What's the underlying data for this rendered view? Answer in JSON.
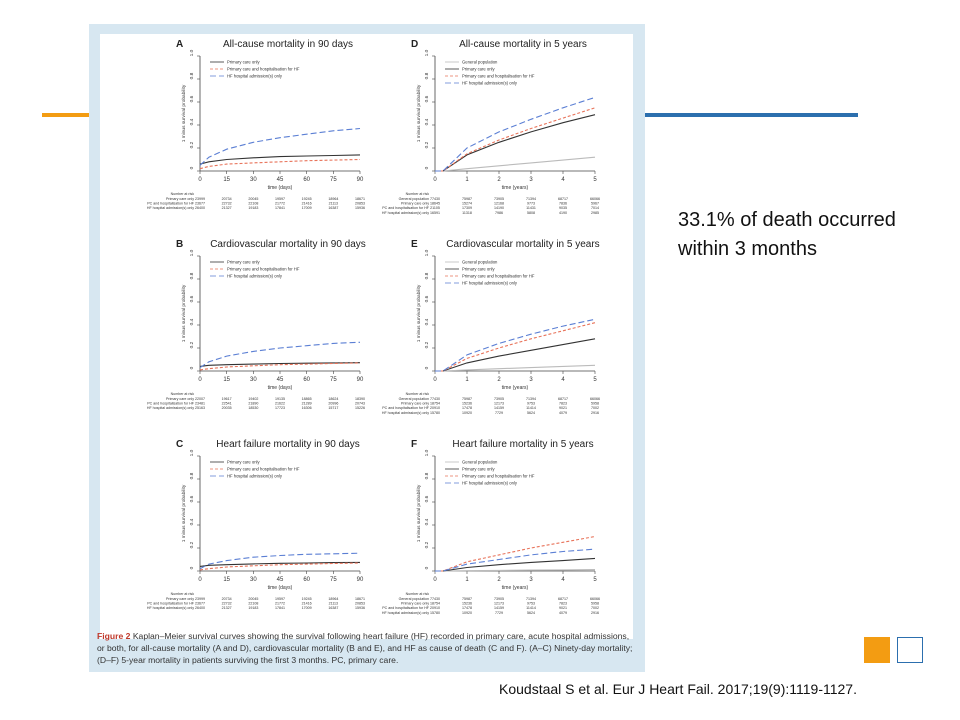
{
  "slide": {
    "note_line1": "33.1% of death occurred",
    "note_line2": "within 3 months",
    "citation": "Koudstaal S et al. Eur J Heart Fail. 2017;19(9):1119-1127.",
    "colors": {
      "orange": "#f39c12",
      "blue": "#2c6fae",
      "figure_bg": "#d7e7f1"
    }
  },
  "figure": {
    "caption_label": "Figure 2",
    "caption_text": "Kaplan–Meier survival curves showing the survival following heart failure (HF) recorded in primary care, acute hospital admissions, or both, for all-cause mortality (A and D), cardiovascular mortality (B and E), and HF as cause of death (C and F). (A–C) Ninety-day mortality; (D–F) 5-year mortality in patients surviving the first 3 months. PC, primary care."
  },
  "chart_data": [
    {
      "type": "line",
      "panel": "A",
      "title": "All-cause mortality in 90 days",
      "xlabel": "time (days)",
      "ylabel": "1 minus survival probability",
      "xlim": [
        0,
        90
      ],
      "ylim": [
        0,
        1
      ],
      "xticks": [
        "0",
        "15",
        "30",
        "45",
        "60",
        "75",
        "90"
      ],
      "yticks": [
        "0",
        "0.2",
        "0.4",
        "0.6",
        "0.8",
        "1.0"
      ],
      "x": [
        0,
        5,
        15,
        30,
        45,
        60,
        75,
        90
      ],
      "series": [
        {
          "name": "Primary care only",
          "color": "#333333",
          "dash": "",
          "values": [
            0.06,
            0.08,
            0.1,
            0.115,
            0.125,
            0.13,
            0.135,
            0.14
          ]
        },
        {
          "name": "Primary care and hospitalisation for HF",
          "color": "#e8735a",
          "dash": "3,2",
          "values": [
            0.02,
            0.04,
            0.06,
            0.07,
            0.08,
            0.09,
            0.095,
            0.1
          ]
        },
        {
          "name": "HF hospital admission(s) only",
          "color": "#5b7fd4",
          "dash": "6,3",
          "values": [
            0.05,
            0.12,
            0.19,
            0.25,
            0.29,
            0.32,
            0.35,
            0.37
          ]
        }
      ],
      "risk_header": "Number at risk",
      "risk_table": [
        {
          "label": "Primary care only",
          "values": [
            "23999",
            "20734",
            "20045",
            "19597",
            "19245",
            "18964",
            "18671"
          ]
        },
        {
          "label": "PC and hospitalisation for HF",
          "values": [
            "23677",
            "22732",
            "22108",
            "21772",
            "21416",
            "21113",
            "20853"
          ]
        },
        {
          "label": "HF hospital admission(s) only",
          "values": [
            "26400",
            "21327",
            "19183",
            "17841",
            "17009",
            "16387",
            "15936"
          ]
        }
      ]
    },
    {
      "type": "line",
      "panel": "B",
      "title": "Cardiovascular mortality in 90 days",
      "xlabel": "time (days)",
      "ylabel": "1 minus survival probability",
      "xlim": [
        0,
        90
      ],
      "ylim": [
        0,
        1
      ],
      "xticks": [
        "0",
        "15",
        "30",
        "45",
        "60",
        "75",
        "90"
      ],
      "yticks": [
        "0",
        "0.2",
        "0.4",
        "0.6",
        "0.8",
        "1.0"
      ],
      "x": [
        0,
        5,
        15,
        30,
        45,
        60,
        75,
        90
      ],
      "series": [
        {
          "name": "Primary care only",
          "color": "#333333",
          "dash": "",
          "values": [
            0.04,
            0.05,
            0.055,
            0.06,
            0.065,
            0.068,
            0.07,
            0.072
          ]
        },
        {
          "name": "Primary care and hospitalisation for HF",
          "color": "#e8735a",
          "dash": "3,2",
          "values": [
            0.01,
            0.02,
            0.035,
            0.045,
            0.055,
            0.06,
            0.065,
            0.07
          ]
        },
        {
          "name": "HF hospital admission(s) only",
          "color": "#5b7fd4",
          "dash": "6,3",
          "values": [
            0.03,
            0.08,
            0.13,
            0.17,
            0.2,
            0.22,
            0.24,
            0.25
          ]
        }
      ],
      "risk_header": "Number at risk",
      "risk_table": [
        {
          "label": "Primary care only",
          "values": [
            "22007",
            "19617",
            "19402",
            "19135",
            "18865",
            "18624",
            "18390"
          ]
        },
        {
          "label": "PC and hospitalisation for HF",
          "values": [
            "23481",
            "22541",
            "21890",
            "21622",
            "21289",
            "20996",
            "20743"
          ]
        },
        {
          "label": "HF hospital admission(s) only",
          "values": [
            "25163",
            "20035",
            "18530",
            "17723",
            "16306",
            "15717",
            "15226"
          ]
        }
      ]
    },
    {
      "type": "line",
      "panel": "C",
      "title": "Heart failure mortality in 90 days",
      "xlabel": "time (days)",
      "ylabel": "1 minus survival probability",
      "xlim": [
        0,
        90
      ],
      "ylim": [
        0,
        1
      ],
      "xticks": [
        "0",
        "15",
        "30",
        "45",
        "60",
        "75",
        "90"
      ],
      "yticks": [
        "0",
        "0.2",
        "0.4",
        "0.6",
        "0.8",
        "1.0"
      ],
      "x": [
        0,
        5,
        15,
        30,
        45,
        60,
        75,
        90
      ],
      "series": [
        {
          "name": "Primary care only",
          "color": "#333333",
          "dash": "",
          "values": [
            0.04,
            0.05,
            0.055,
            0.062,
            0.067,
            0.07,
            0.073,
            0.075
          ]
        },
        {
          "name": "Primary care and hospitalisation for HF",
          "color": "#e8735a",
          "dash": "3,2",
          "values": [
            0.01,
            0.02,
            0.035,
            0.045,
            0.055,
            0.06,
            0.065,
            0.07
          ]
        },
        {
          "name": "HF hospital admission(s) only",
          "color": "#5b7fd4",
          "dash": "6,3",
          "values": [
            0.02,
            0.06,
            0.09,
            0.12,
            0.135,
            0.145,
            0.15,
            0.155
          ]
        }
      ],
      "risk_header": "Number at risk",
      "risk_table": [
        {
          "label": "Primary care only",
          "values": [
            "23999",
            "20734",
            "20045",
            "19597",
            "19245",
            "18964",
            "18671"
          ]
        },
        {
          "label": "PC and hospitalisation for HF",
          "values": [
            "23677",
            "22732",
            "22108",
            "21772",
            "21416",
            "21113",
            "20853"
          ]
        },
        {
          "label": "HF hospital admission(s) only",
          "values": [
            "26400",
            "21327",
            "19183",
            "17841",
            "17009",
            "16387",
            "15936"
          ]
        }
      ]
    },
    {
      "type": "line",
      "panel": "D",
      "title": "All-cause mortality in 5 years",
      "xlabel": "time (years)",
      "ylabel": "1 minus survival probability",
      "xlim": [
        0,
        5
      ],
      "ylim": [
        0,
        1
      ],
      "xticks": [
        "0",
        "1",
        "2",
        "3",
        "4",
        "5"
      ],
      "yticks": [
        "0",
        "0.2",
        "0.4",
        "0.6",
        "0.8",
        "1.0"
      ],
      "x": [
        0,
        0.25,
        1,
        2,
        3,
        4,
        5
      ],
      "series": [
        {
          "name": "General population",
          "color": "#bbbbbb",
          "dash": "",
          "values": [
            0,
            0,
            0.02,
            0.045,
            0.07,
            0.095,
            0.12
          ]
        },
        {
          "name": "Primary care only",
          "color": "#333333",
          "dash": "",
          "values": [
            0,
            0,
            0.14,
            0.25,
            0.34,
            0.42,
            0.49
          ]
        },
        {
          "name": "Primary care and hospitalisation for HF",
          "color": "#e8735a",
          "dash": "3,2",
          "values": [
            0,
            0,
            0.15,
            0.27,
            0.37,
            0.46,
            0.55
          ]
        },
        {
          "name": "HF hospital admission(s) only",
          "color": "#5b7fd4",
          "dash": "6,3",
          "values": [
            0,
            0,
            0.2,
            0.34,
            0.45,
            0.55,
            0.64
          ]
        }
      ],
      "risk_header": "Number at risk",
      "risk_table": [
        {
          "label": "General population",
          "values": [
            "77430",
            "75987",
            "73905",
            "71394",
            "68717",
            "66066"
          ]
        },
        {
          "label": "Primary care only",
          "values": [
            "18645",
            "15274",
            "12168",
            "9773",
            "7836",
            "5967"
          ]
        },
        {
          "label": "PC and hospitalisation for HF",
          "values": [
            "21105",
            "17309",
            "14190",
            "11431",
            "9035",
            "7014"
          ]
        },
        {
          "label": "HF hospital admission(s) only",
          "values": [
            "16591",
            "11318",
            "7986",
            "5808",
            "4190",
            "2985"
          ]
        }
      ]
    },
    {
      "type": "line",
      "panel": "E",
      "title": "Cardiovascular mortality in 5 years",
      "xlabel": "time (years)",
      "ylabel": "1 minus survival probability",
      "xlim": [
        0,
        5
      ],
      "ylim": [
        0,
        1
      ],
      "xticks": [
        "0",
        "1",
        "2",
        "3",
        "4",
        "5"
      ],
      "yticks": [
        "0",
        "0.2",
        "0.4",
        "0.6",
        "0.8",
        "1.0"
      ],
      "x": [
        0,
        0.25,
        1,
        2,
        3,
        4,
        5
      ],
      "series": [
        {
          "name": "General population",
          "color": "#bbbbbb",
          "dash": "",
          "values": [
            0,
            0,
            0.01,
            0.02,
            0.03,
            0.04,
            0.05
          ]
        },
        {
          "name": "Primary care only",
          "color": "#333333",
          "dash": "",
          "values": [
            0,
            0,
            0.07,
            0.13,
            0.18,
            0.23,
            0.28
          ]
        },
        {
          "name": "Primary care and hospitalisation for HF",
          "color": "#e8735a",
          "dash": "3,2",
          "values": [
            0,
            0,
            0.11,
            0.2,
            0.28,
            0.35,
            0.42
          ]
        },
        {
          "name": "HF hospital admission(s) only",
          "color": "#5b7fd4",
          "dash": "6,3",
          "values": [
            0,
            0,
            0.14,
            0.24,
            0.32,
            0.39,
            0.45
          ]
        }
      ],
      "risk_header": "Number at risk",
      "risk_table": [
        {
          "label": "General population",
          "values": [
            "77430",
            "75987",
            "73905",
            "71394",
            "68717",
            "66066"
          ]
        },
        {
          "label": "Primary care only",
          "values": [
            "18754",
            "15236",
            "12173",
            "9753",
            "7823",
            "5958"
          ]
        },
        {
          "label": "PC and hospitalisation for HF",
          "values": [
            "20910",
            "17478",
            "14159",
            "11414",
            "9021",
            "7002"
          ]
        },
        {
          "label": "HF hospital admission(s) only",
          "values": [
            "15780",
            "10920",
            "7729",
            "5624",
            "4079",
            "2916"
          ]
        }
      ]
    },
    {
      "type": "line",
      "panel": "F",
      "title": "Heart failure mortality in 5 years",
      "xlabel": "time (years)",
      "ylabel": "1 minus survival probability",
      "xlim": [
        0,
        5
      ],
      "ylim": [
        0,
        1
      ],
      "xticks": [
        "0",
        "1",
        "2",
        "3",
        "4",
        "5"
      ],
      "yticks": [
        "0",
        "0.2",
        "0.4",
        "0.6",
        "0.8",
        "1.0"
      ],
      "x": [
        0,
        0.25,
        1,
        2,
        3,
        4,
        5
      ],
      "series": [
        {
          "name": "General population",
          "color": "#bbbbbb",
          "dash": "",
          "values": [
            0,
            0,
            0.003,
            0.005,
            0.008,
            0.01,
            0.012
          ]
        },
        {
          "name": "Primary care only",
          "color": "#333333",
          "dash": "",
          "values": [
            0,
            0,
            0.03,
            0.055,
            0.075,
            0.09,
            0.11
          ]
        },
        {
          "name": "Primary care and hospitalisation for HF",
          "color": "#e8735a",
          "dash": "3,2",
          "values": [
            0,
            0,
            0.08,
            0.14,
            0.2,
            0.25,
            0.3
          ]
        },
        {
          "name": "HF hospital admission(s) only",
          "color": "#5b7fd4",
          "dash": "6,3",
          "values": [
            0,
            0,
            0.06,
            0.1,
            0.14,
            0.17,
            0.19
          ]
        }
      ],
      "risk_header": "Number at risk",
      "risk_table": [
        {
          "label": "General population",
          "values": [
            "77430",
            "75987",
            "73905",
            "71394",
            "68717",
            "66066"
          ]
        },
        {
          "label": "Primary care only",
          "values": [
            "18754",
            "15236",
            "12173",
            "9753",
            "7823",
            "5958"
          ]
        },
        {
          "label": "PC and hospitalisation for HF",
          "values": [
            "20910",
            "17478",
            "14159",
            "11414",
            "9021",
            "7002"
          ]
        },
        {
          "label": "HF hospital admission(s) only",
          "values": [
            "15780",
            "10920",
            "7729",
            "5624",
            "4079",
            "2916"
          ]
        }
      ]
    }
  ]
}
